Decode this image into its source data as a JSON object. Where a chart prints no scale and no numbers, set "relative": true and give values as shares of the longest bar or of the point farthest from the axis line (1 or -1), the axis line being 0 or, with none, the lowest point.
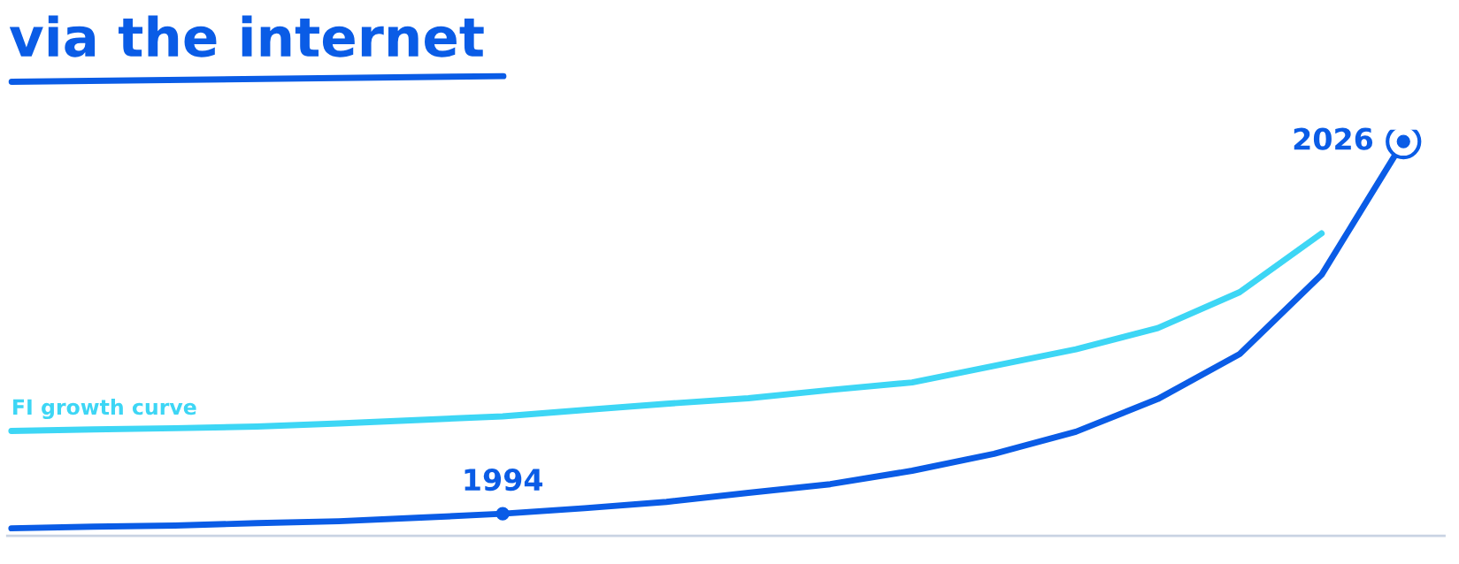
{
  "chart_data": {
    "type": "line",
    "title": "via the internet",
    "relative": true,
    "categories": [
      null,
      null,
      null,
      null,
      null,
      null,
      null,
      null,
      null,
      null,
      null,
      null,
      null,
      null,
      null,
      null,
      null,
      null
    ],
    "series": [
      {
        "color": "#0a5ce6",
        "values": [
          0.019,
          0.023,
          0.026,
          0.032,
          0.037,
          0.046,
          0.056,
          0.07,
          0.086,
          0.109,
          0.131,
          0.165,
          0.208,
          0.264,
          0.347,
          0.461,
          0.662,
          1
        ]
      },
      {
        "name": "FI growth curve",
        "color": "#3dd6f5",
        "values": [
          0.266,
          0.27,
          0.273,
          0.277,
          0.285,
          0.294,
          0.303,
          0.319,
          0.335,
          0.349,
          0.37,
          0.389,
          0.431,
          0.473,
          0.527,
          0.618,
          0.767,
          null
        ]
      }
    ],
    "annotations": [
      "1994",
      "2026"
    ]
  }
}
